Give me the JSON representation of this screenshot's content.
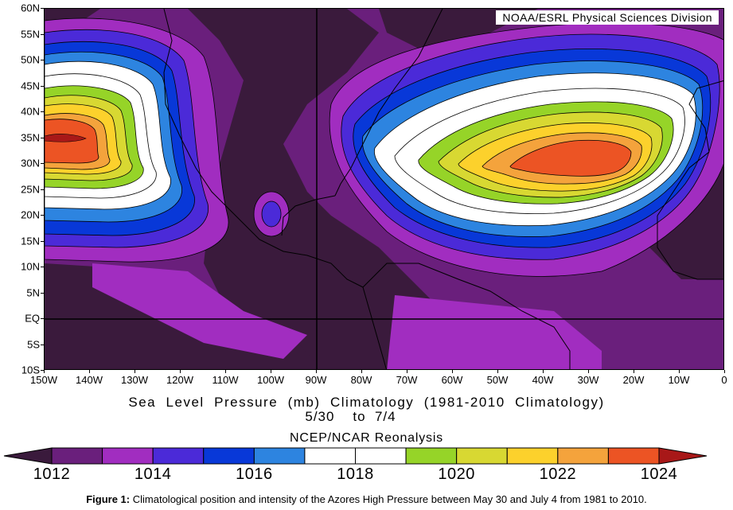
{
  "map": {
    "credit": "NOAA/ESRL Physical Sciences Division",
    "lat_labels": [
      "60N",
      "55N",
      "50N",
      "45N",
      "40N",
      "35N",
      "30N",
      "25N",
      "20N",
      "15N",
      "10N",
      "5N",
      "EQ",
      "5S",
      "10S"
    ],
    "lon_labels": [
      "150W",
      "140W",
      "130W",
      "120W",
      "110W",
      "100W",
      "90W",
      "80W",
      "70W",
      "60W",
      "50W",
      "40W",
      "30W",
      "20W",
      "10W",
      "0"
    ],
    "lat_range": [
      -10,
      60
    ],
    "lon_range": [
      -150,
      0
    ],
    "variable": "sea level pressure",
    "units": "mb",
    "highs": [
      {
        "name_shown": "",
        "center_lon": -35,
        "center_lat": 32,
        "max_level": 1023
      },
      {
        "name_shown": "",
        "center_lon": -144,
        "center_lat": 35,
        "max_level": 1024
      }
    ]
  },
  "titles": {
    "main": "Sea  Level  Pressure  (mb)  Climatology  (1981-2010  Climatology)",
    "range": "5/30    to  7/4",
    "source": "NCEP/NCAR Reonalysis"
  },
  "colorbar": {
    "labels": [
      "1012",
      "1014",
      "1016",
      "1018",
      "1020",
      "1022",
      "1024"
    ],
    "bins": [
      {
        "color": "#3a1a3c"
      },
      {
        "color": "#6a1f7c"
      },
      {
        "color": "#a12dc0"
      },
      {
        "color": "#4b2ad8"
      },
      {
        "color": "#0838d8"
      },
      {
        "color": "#2d84e0"
      },
      {
        "color": "#ffffff"
      },
      {
        "color": "#ffffff"
      },
      {
        "color": "#96d428"
      },
      {
        "color": "#d8d832"
      },
      {
        "color": "#fcd12c"
      },
      {
        "color": "#f4a33c"
      },
      {
        "color": "#ec5424"
      },
      {
        "color": "#a81818"
      }
    ]
  },
  "caption": {
    "label": "Figure 1:",
    "text": " Climatological position and intensity of the Azores High Pressure between May 30 and July 4 from 1981 to 2010."
  }
}
